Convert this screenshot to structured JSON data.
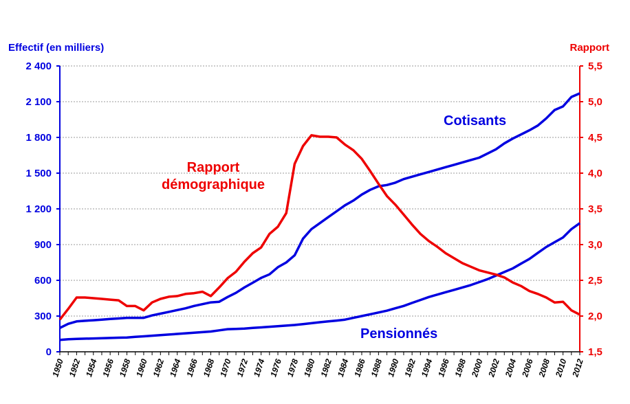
{
  "chart_data": {
    "type": "line",
    "title": "",
    "ylabel_left": "Effectif (en milliers)",
    "ylabel_right": "Rapport",
    "ylim_left": [
      0,
      2400
    ],
    "ylim_right": [
      1.5,
      5.5
    ],
    "yticks_left": [
      "0",
      "300",
      "600",
      "900",
      "1 200",
      "1 500",
      "1 800",
      "2 100",
      "2 400"
    ],
    "yticks_right": [
      "1,5",
      "2,0",
      "2,5",
      "3,0",
      "3,5",
      "4,0",
      "4,5",
      "5,0",
      "5,5"
    ],
    "xlim": [
      1950,
      2012
    ],
    "xticks": [
      "1950",
      "1952",
      "1954",
      "1956",
      "1958",
      "1960",
      "1962",
      "1964",
      "1966",
      "1968",
      "1970",
      "1972",
      "1974",
      "1976",
      "1978",
      "1980",
      "1982",
      "1984",
      "1986",
      "1988",
      "1990",
      "1992",
      "1994",
      "1996",
      "1998",
      "2000",
      "2002",
      "2004",
      "2006",
      "2008",
      "2010",
      "2012"
    ],
    "grid": true,
    "colors": {
      "left_axis": "#0000e0",
      "right_axis": "#ee0000",
      "cotisants": "#0000e0",
      "pensionnes": "#0000e0",
      "rapport": "#ee0000"
    },
    "x_start": 1950,
    "series": [
      {
        "name": "Cotisants",
        "axis": "left",
        "values": [
          200,
          235,
          255,
          260,
          265,
          270,
          275,
          280,
          285,
          285,
          285,
          305,
          320,
          335,
          350,
          365,
          385,
          400,
          415,
          420,
          460,
          495,
          540,
          580,
          620,
          650,
          710,
          750,
          810,
          950,
          1030,
          1080,
          1130,
          1180,
          1230,
          1270,
          1320,
          1360,
          1390,
          1400,
          1420,
          1450,
          1470,
          1490,
          1510,
          1530,
          1550,
          1570,
          1590,
          1610,
          1630,
          1665,
          1700,
          1750,
          1790,
          1825,
          1860,
          1900,
          1960,
          2030,
          2060,
          2140,
          2170
        ]
      },
      {
        "name": "Pensionnés",
        "axis": "left",
        "values": [
          100,
          105,
          108,
          110,
          112,
          114,
          116,
          118,
          120,
          125,
          130,
          135,
          140,
          145,
          150,
          155,
          160,
          165,
          170,
          180,
          190,
          192,
          195,
          200,
          205,
          210,
          215,
          220,
          225,
          232,
          240,
          248,
          255,
          262,
          270,
          285,
          300,
          315,
          330,
          345,
          365,
          385,
          410,
          435,
          460,
          480,
          500,
          520,
          540,
          560,
          585,
          610,
          640,
          670,
          700,
          740,
          780,
          830,
          880,
          920,
          960,
          1030,
          1080
        ]
      },
      {
        "name": "Rapport démographique",
        "axis": "right",
        "values": [
          1.95,
          2.1,
          2.26,
          2.26,
          2.25,
          2.24,
          2.23,
          2.22,
          2.14,
          2.14,
          2.08,
          2.19,
          2.24,
          2.27,
          2.28,
          2.31,
          2.32,
          2.34,
          2.28,
          2.4,
          2.53,
          2.62,
          2.76,
          2.88,
          2.96,
          3.15,
          3.25,
          3.44,
          4.13,
          4.38,
          4.53,
          4.51,
          4.51,
          4.5,
          4.4,
          4.32,
          4.2,
          4.03,
          3.85,
          3.68,
          3.56,
          3.42,
          3.28,
          3.15,
          3.05,
          2.97,
          2.88,
          2.81,
          2.74,
          2.69,
          2.64,
          2.61,
          2.58,
          2.54,
          2.47,
          2.42,
          2.35,
          2.31,
          2.26,
          2.19,
          2.2,
          2.08,
          2.02
        ]
      }
    ],
    "annotations": {
      "cotisants": "Cotisants",
      "pensionnes": "Pensionnés",
      "rapport_line1": "Rapport",
      "rapport_line2": "démographique"
    }
  }
}
